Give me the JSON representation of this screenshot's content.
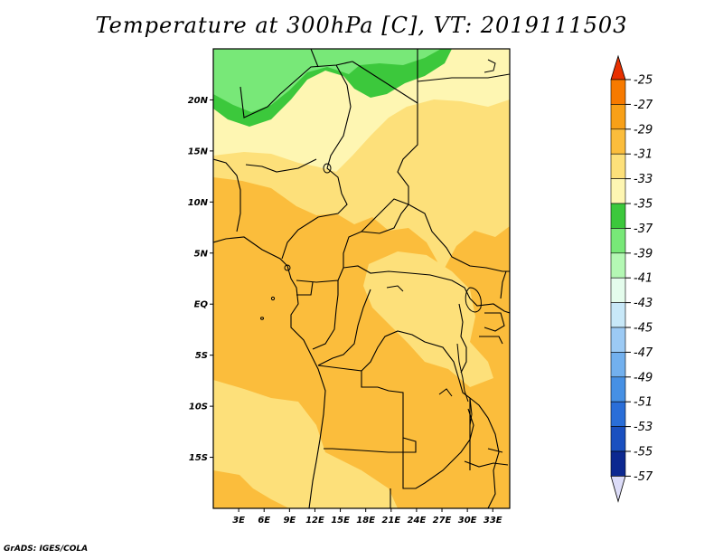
{
  "title": "Temperature at 300hPa [C], VT: 2019111503",
  "credit": "GrADS: IGES/COLA",
  "map": {
    "lon_range": [
      0,
      35
    ],
    "lat_range": [
      -20,
      25
    ],
    "lat_ticks": [
      {
        "lat": 20,
        "label": "20N"
      },
      {
        "lat": 15,
        "label": "15N"
      },
      {
        "lat": 10,
        "label": "10N"
      },
      {
        "lat": 5,
        "label": "5N"
      },
      {
        "lat": 0,
        "label": "EQ"
      },
      {
        "lat": -5,
        "label": "5S"
      },
      {
        "lat": -10,
        "label": "10S"
      },
      {
        "lat": -15,
        "label": "15S"
      }
    ],
    "lon_ticks": [
      {
        "lon": 3,
        "label": "3E"
      },
      {
        "lon": 6,
        "label": "6E"
      },
      {
        "lon": 9,
        "label": "9E"
      },
      {
        "lon": 12,
        "label": "12E"
      },
      {
        "lon": 15,
        "label": "15E"
      },
      {
        "lon": 18,
        "label": "18E"
      },
      {
        "lon": 21,
        "label": "21E"
      },
      {
        "lon": 24,
        "label": "24E"
      },
      {
        "lon": 27,
        "label": "27E"
      },
      {
        "lon": 30,
        "label": "30E"
      },
      {
        "lon": 33,
        "label": "33E"
      }
    ]
  },
  "colorbar": {
    "levels": [
      {
        "label": "-25",
        "color": "#f04000"
      },
      {
        "label": "-27",
        "color": "#f77a00"
      },
      {
        "label": "-29",
        "color": "#f8a018"
      },
      {
        "label": "-31",
        "color": "#fbbd3c"
      },
      {
        "label": "-33",
        "color": "#fde07a"
      },
      {
        "label": "-35",
        "color": "#fef6b2"
      },
      {
        "label": "-37",
        "color": "#3cc83c"
      },
      {
        "label": "-39",
        "color": "#78e878"
      },
      {
        "label": "-41",
        "color": "#b4f8b4"
      },
      {
        "label": "-43",
        "color": "#e4fcec"
      },
      {
        "label": "-45",
        "color": "#c8e8f8"
      },
      {
        "label": "-47",
        "color": "#9ccaf4"
      },
      {
        "label": "-49",
        "color": "#72b0ee"
      },
      {
        "label": "-51",
        "color": "#4690e4"
      },
      {
        "label": "-53",
        "color": "#2a6ed8"
      },
      {
        "label": "-55",
        "color": "#1a50c0"
      },
      {
        "label": "-57",
        "color": "#0c2890"
      }
    ],
    "top_arrow_color": "#e83000",
    "bottom_arrow_color": "#dcdcf8",
    "bottom_bin_color": "#0c0c70"
  }
}
